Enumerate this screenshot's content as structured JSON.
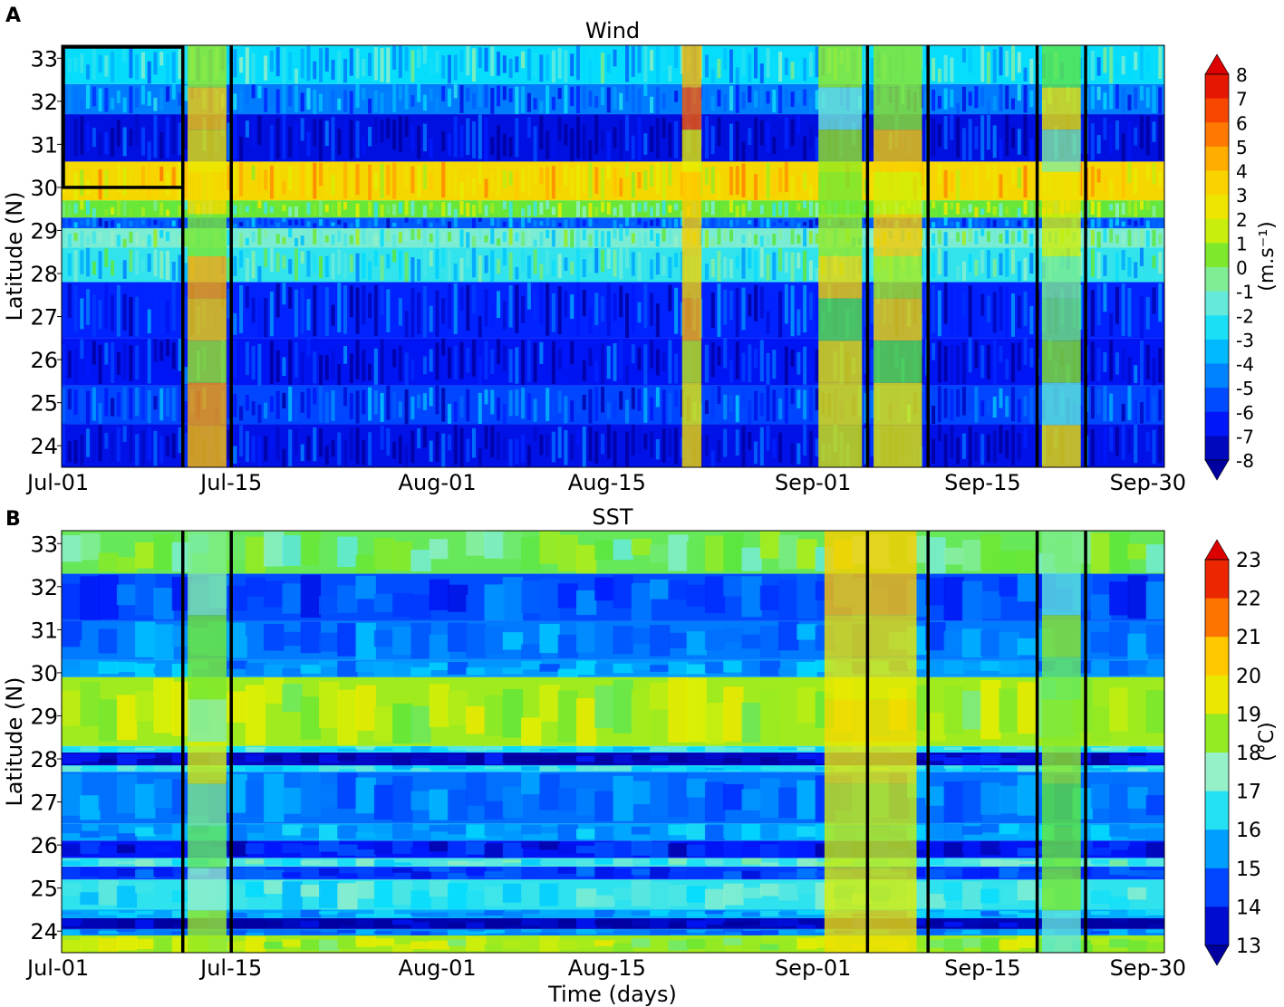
{
  "chart_data": [
    {
      "panel_label": "A",
      "type": "heatmap",
      "title": "Wind",
      "xlabel": "",
      "ylabel": "Latitude (N)",
      "x_range_days": [
        0,
        91
      ],
      "x_ticks": [
        {
          "day": 0,
          "label": "Jul-01"
        },
        {
          "day": 14,
          "label": "Jul-15"
        },
        {
          "day": 31,
          "label": "Aug-01"
        },
        {
          "day": 45,
          "label": "Aug-15"
        },
        {
          "day": 62,
          "label": "Sep-01"
        },
        {
          "day": 76,
          "label": "Sep-15"
        },
        {
          "day": 91,
          "label": "Sep-30"
        }
      ],
      "y_range": [
        23.5,
        33.3
      ],
      "y_ticks": [
        24,
        25,
        26,
        27,
        28,
        29,
        30,
        31,
        32,
        33
      ],
      "event_lines_days": [
        10,
        14,
        66.5,
        71.5,
        80.5,
        84.5
      ],
      "highlight_box": {
        "day_from": 0,
        "day_to": 10,
        "lat_from": 30,
        "lat_to": 33.3
      },
      "colorbar": {
        "label": "(m.s⁻¹)",
        "min": -8,
        "max": 8,
        "tick_labels": [
          "8",
          "7",
          "6",
          "5",
          "4",
          "3",
          "2",
          "1",
          "0",
          "-1",
          "-2",
          "-3",
          "-4",
          "-5",
          "-6",
          "-7",
          "-8"
        ]
      },
      "bands": [
        {
          "lat": [
            23.5,
            24.5
          ],
          "value": -6.8
        },
        {
          "lat": [
            24.5,
            25.4
          ],
          "value": -5.6
        },
        {
          "lat": [
            25.4,
            26.5
          ],
          "value": -6.6
        },
        {
          "lat": [
            26.5,
            27.8
          ],
          "value": -6.2
        },
        {
          "lat": [
            27.8,
            28.6
          ],
          "value": -2.2
        },
        {
          "lat": [
            28.6,
            29.05
          ],
          "value": -1.2
        },
        {
          "lat": [
            29.05,
            29.3
          ],
          "value": -5.2
        },
        {
          "lat": [
            29.3,
            29.7
          ],
          "value": 0.2
        },
        {
          "lat": [
            29.7,
            30.6
          ],
          "value": 3.2
        },
        {
          "lat": [
            30.6,
            31.7
          ],
          "value": -6.9
        },
        {
          "lat": [
            31.7,
            32.4
          ],
          "value": -4.6
        },
        {
          "lat": [
            32.4,
            33.3
          ],
          "value": -2.8
        }
      ],
      "events": [
        {
          "day_from": 10,
          "day_to": 14,
          "value": 2.4
        },
        {
          "day_from": 62,
          "day_to": 66.5,
          "value": 0.9
        },
        {
          "day_from": 66.5,
          "day_to": 71.5,
          "value": 1.6
        },
        {
          "day_from": 80.5,
          "day_to": 84.5,
          "value": 0.6
        },
        {
          "day_from": 51,
          "day_to": 53,
          "value": 3.8
        }
      ]
    },
    {
      "panel_label": "B",
      "type": "heatmap",
      "title": "SST",
      "xlabel": "Time (days)",
      "ylabel": "Latitude (N)",
      "x_range_days": [
        0,
        91
      ],
      "x_ticks": [
        {
          "day": 0,
          "label": "Jul-01"
        },
        {
          "day": 14,
          "label": "Jul-15"
        },
        {
          "day": 31,
          "label": "Aug-01"
        },
        {
          "day": 45,
          "label": "Aug-15"
        },
        {
          "day": 62,
          "label": "Sep-01"
        },
        {
          "day": 76,
          "label": "Sep-15"
        },
        {
          "day": 91,
          "label": "Sep-30"
        }
      ],
      "y_range": [
        23.5,
        33.3
      ],
      "y_ticks": [
        24,
        25,
        26,
        27,
        28,
        29,
        30,
        31,
        32,
        33
      ],
      "event_lines_days": [
        10,
        14,
        66.5,
        71.5,
        80.5,
        84.5
      ],
      "colorbar": {
        "label": "(°C)",
        "min": 13,
        "max": 23,
        "tick_labels": [
          "23",
          "22",
          "21",
          "20",
          "19",
          "18",
          "17",
          "16",
          "15",
          "14",
          "13"
        ]
      },
      "bands": [
        {
          "lat": [
            23.5,
            23.9
          ],
          "value": 18.6
        },
        {
          "lat": [
            23.9,
            24.05
          ],
          "value": 15.2
        },
        {
          "lat": [
            24.05,
            24.3
          ],
          "value": 13.2
        },
        {
          "lat": [
            24.3,
            24.5
          ],
          "value": 15.6
        },
        {
          "lat": [
            24.5,
            25.2
          ],
          "value": 16.6
        },
        {
          "lat": [
            25.2,
            25.5
          ],
          "value": 14.4
        },
        {
          "lat": [
            25.5,
            25.7
          ],
          "value": 16.8
        },
        {
          "lat": [
            25.7,
            26.1
          ],
          "value": 13.9
        },
        {
          "lat": [
            26.1,
            26.5
          ],
          "value": 15.6
        },
        {
          "lat": [
            26.5,
            27.7
          ],
          "value": 15.0
        },
        {
          "lat": [
            27.7,
            27.85
          ],
          "value": 16.4
        },
        {
          "lat": [
            27.85,
            28.15
          ],
          "value": 13.3
        },
        {
          "lat": [
            28.15,
            28.3
          ],
          "value": 16.5
        },
        {
          "lat": [
            28.3,
            29.9
          ],
          "value": 18.6
        },
        {
          "lat": [
            29.9,
            30.3
          ],
          "value": 15.4
        },
        {
          "lat": [
            30.3,
            31.2
          ],
          "value": 15.1
        },
        {
          "lat": [
            31.2,
            32.3
          ],
          "value": 14.6
        },
        {
          "lat": [
            32.3,
            33.3
          ],
          "value": 17.9
        }
      ],
      "events": [
        {
          "day_from": 62,
          "day_to": 71.5,
          "value": 19.8
        },
        {
          "day_from": 80.5,
          "day_to": 84.5,
          "value": 17.6
        },
        {
          "day_from": 10,
          "day_to": 14,
          "value": 18.3
        }
      ]
    }
  ]
}
